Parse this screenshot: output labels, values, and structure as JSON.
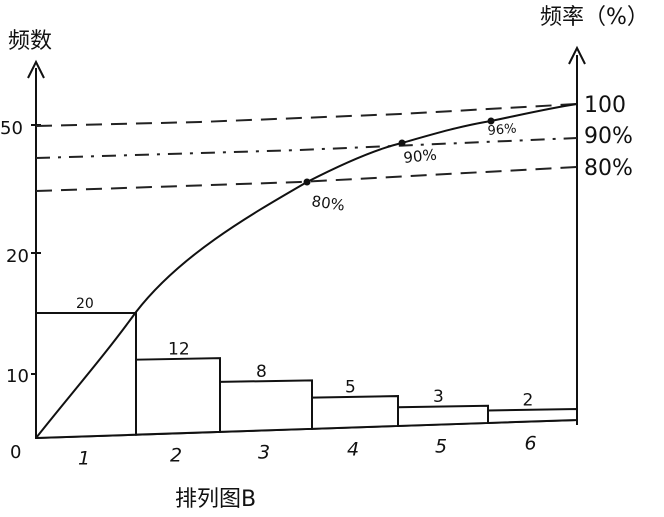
{
  "chart_data": {
    "type": "bar",
    "title": "排列图B",
    "ylabel_left": "频数",
    "ylabel_right": "频率（%）",
    "categories": [
      "1",
      "2",
      "3",
      "4",
      "5",
      "6"
    ],
    "values": [
      20,
      12,
      8,
      5,
      3,
      2
    ],
    "bar_labels": [
      "20",
      "12",
      "8",
      "5",
      "3",
      "2"
    ],
    "left_ticks": [
      "0",
      "10",
      "20",
      "50"
    ],
    "right_ticks": [
      "100",
      "90%",
      "80%"
    ],
    "cumulative_point_labels": [
      "80%",
      "90%",
      "96%"
    ],
    "legend": "none",
    "grid": false
  }
}
